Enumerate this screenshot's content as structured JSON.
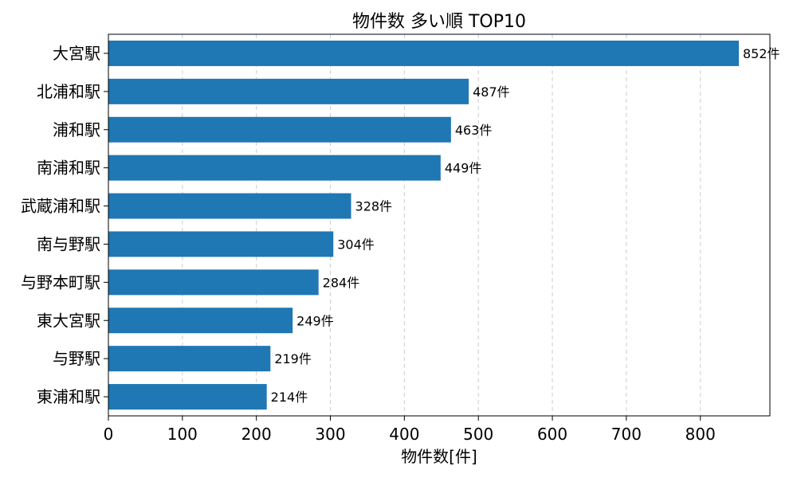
{
  "chart_data": {
    "type": "bar",
    "orientation": "horizontal",
    "title": "物件数 多い順 TOP10",
    "xlabel": "物件数[件]",
    "ylabel": "",
    "categories": [
      "大宮駅",
      "北浦和駅",
      "浦和駅",
      "南浦和駅",
      "武蔵浦和駅",
      "南与野駅",
      "与野本町駅",
      "東大宮駅",
      "与野駅",
      "東浦和駅"
    ],
    "values": [
      852,
      487,
      463,
      449,
      328,
      304,
      284,
      249,
      219,
      214
    ],
    "data_labels": [
      "852件",
      "487件",
      "463件",
      "449件",
      "328件",
      "304件",
      "284件",
      "249件",
      "219件",
      "214件"
    ],
    "xlim": [
      0,
      894
    ],
    "xticks": [
      0,
      100,
      200,
      300,
      400,
      500,
      600,
      700,
      800
    ],
    "grid": "x-dashed",
    "bar_color": "#1f77b4",
    "grid_color": "#cccccc"
  }
}
